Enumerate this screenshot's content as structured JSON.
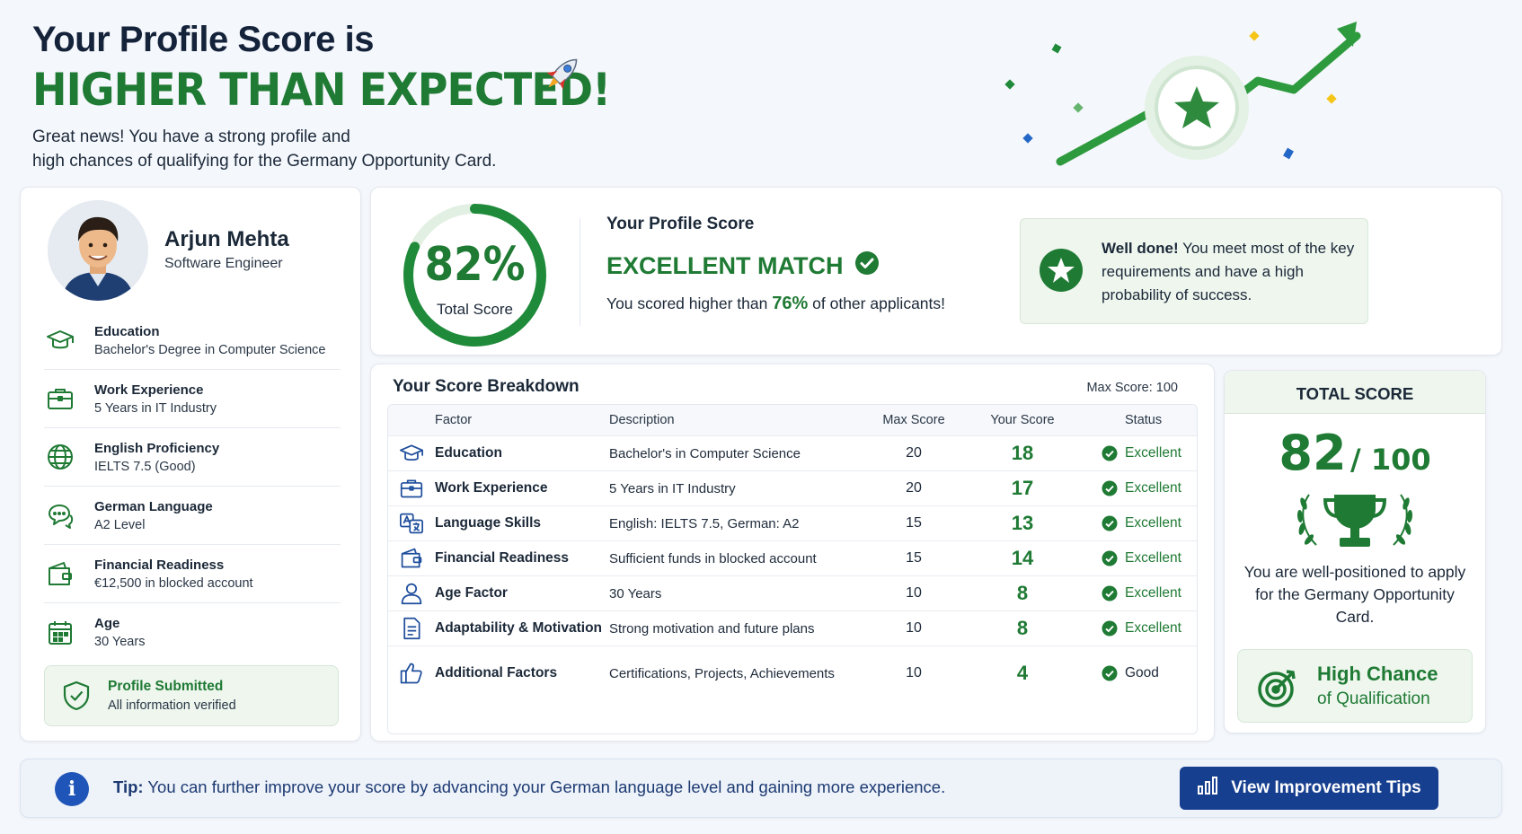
{
  "header": {
    "title_line1": "Your Profile Score is",
    "title_line2": "HIGHER THAN EXPECTED!",
    "subtitle_line1": "Great news! You have a strong profile and",
    "subtitle_line2": "high chances of qualifying for the Germany Opportunity Card."
  },
  "profile": {
    "name": "Arjun Mehta",
    "role": "Software Engineer",
    "items": [
      {
        "title": "Education",
        "value": "Bachelor's Degree in Computer Science",
        "icon": "graduation-cap-icon"
      },
      {
        "title": "Work Experience",
        "value": "5 Years in IT Industry",
        "icon": "briefcase-icon"
      },
      {
        "title": "English Proficiency",
        "value": "IELTS 7.5 (Good)",
        "icon": "globe-icon"
      },
      {
        "title": "German Language",
        "value": "A2 Level",
        "icon": "chat-bubbles-icon"
      },
      {
        "title": "Financial Readiness",
        "value": "€12,500 in blocked account",
        "icon": "wallet-icon"
      },
      {
        "title": "Age",
        "value": "30 Years",
        "icon": "calendar-icon"
      }
    ],
    "submitted_title": "Profile Submitted",
    "submitted_sub": "All information verified"
  },
  "summary": {
    "score_pct": "82%",
    "score_fraction": 0.82,
    "score_label": "Total Score",
    "label": "Your Profile Score",
    "match": "EXCELLENT MATCH",
    "compare_prefix": "You scored higher than",
    "compare_pct": "76%",
    "compare_suffix": "of other applicants!",
    "welldone_bold": "Well done!",
    "welldone_text": "You meet most of the key requirements and have a high probability of success."
  },
  "breakdown": {
    "title": "Your Score Breakdown",
    "max_label": "Max Score: 100",
    "headers": {
      "factor": "Factor",
      "description": "Description",
      "max": "Max Score",
      "your": "Your Score",
      "status": "Status"
    },
    "rows": [
      {
        "factor": "Education",
        "description": "Bachelor's in Computer Science",
        "max": "20",
        "your": "18",
        "status": "Excellent",
        "icon": "graduation-cap-icon"
      },
      {
        "factor": "Work Experience",
        "description": "5 Years in IT Industry",
        "max": "20",
        "your": "17",
        "status": "Excellent",
        "icon": "briefcase-icon"
      },
      {
        "factor": "Language Skills",
        "description": "English: IELTS 7.5, German: A2",
        "max": "15",
        "your": "13",
        "status": "Excellent",
        "icon": "translate-icon"
      },
      {
        "factor": "Financial Readiness",
        "description": "Sufficient funds in blocked account",
        "max": "15",
        "your": "14",
        "status": "Excellent",
        "icon": "wallet-icon"
      },
      {
        "factor": "Age Factor",
        "description": "30 Years",
        "max": "10",
        "your": "8",
        "status": "Excellent",
        "icon": "user-icon"
      },
      {
        "factor": "Adaptability & Motivation",
        "description": "Strong motivation and future plans",
        "max": "10",
        "your": "8",
        "status": "Excellent",
        "icon": "document-icon"
      },
      {
        "factor": "Additional Factors",
        "description": "Certifications, Projects, Achievements",
        "max": "10",
        "your": "4",
        "status": "Good",
        "icon": "thumbs-up-icon"
      }
    ]
  },
  "total": {
    "header": "TOTAL SCORE",
    "score": "82",
    "out_of": "/ 100",
    "text": "You are well-positioned to apply for the Germany Opportunity Card.",
    "chance_title": "High Chance",
    "chance_sub": "of Qualification"
  },
  "tip": {
    "label": "Tip:",
    "text": "You can further improve your score by advancing your German language level and gaining more experience.",
    "button": "View Improvement Tips"
  },
  "colors": {
    "accent_green": "#1f7a34",
    "primary_blue": "#173f8f"
  }
}
